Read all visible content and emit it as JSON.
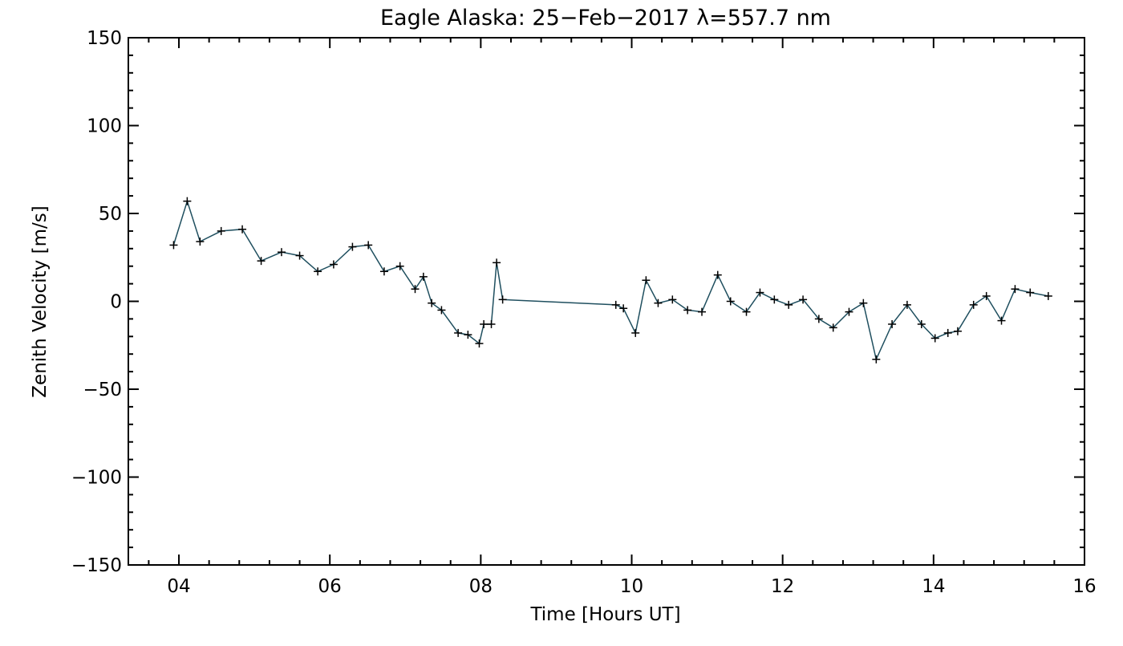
{
  "chart_data": {
    "type": "line",
    "title": "Eagle Alaska: 25−Feb−2017 λ=557.7 nm",
    "xlabel": "Time [Hours UT]",
    "ylabel": "Zenith Velocity [m/s]",
    "xlim": [
      3.33,
      16
    ],
    "ylim": [
      -150,
      150
    ],
    "xticks": [
      {
        "value": 4,
        "label": "04"
      },
      {
        "value": 6,
        "label": "06"
      },
      {
        "value": 8,
        "label": "08"
      },
      {
        "value": 10,
        "label": "10"
      },
      {
        "value": 12,
        "label": "12"
      },
      {
        "value": 14,
        "label": "14"
      },
      {
        "value": 16,
        "label": "16"
      }
    ],
    "yticks": [
      {
        "value": 150,
        "label": "150"
      },
      {
        "value": 100,
        "label": "100"
      },
      {
        "value": 50,
        "label": "50"
      },
      {
        "value": 0,
        "label": "0"
      },
      {
        "value": -50,
        "label": "−50"
      },
      {
        "value": -100,
        "label": "−100"
      },
      {
        "value": -150,
        "label": "−150"
      }
    ],
    "grid": false,
    "line_color": "#1f4f5f",
    "marker": "+",
    "series": [
      {
        "x": [
          3.93,
          4.11,
          4.28,
          4.56,
          4.84,
          5.09,
          5.36,
          5.6,
          5.84,
          6.05,
          6.3,
          6.51,
          6.72,
          6.93,
          7.13,
          7.24,
          7.35,
          7.48,
          7.7,
          7.83,
          7.98,
          8.04,
          8.14,
          8.21,
          8.29,
          9.79,
          9.89,
          10.05,
          10.19,
          10.35,
          10.54,
          10.74,
          10.93,
          11.14,
          11.31,
          11.52,
          11.7,
          11.89,
          12.08,
          12.27,
          12.48,
          12.67,
          12.88,
          13.07,
          13.24,
          13.45,
          13.65,
          13.84,
          14.02,
          14.19,
          14.32,
          14.53,
          14.7,
          14.9,
          15.08,
          15.28,
          15.52
        ],
        "y": [
          32,
          57,
          34,
          40,
          41,
          23,
          28,
          26,
          17,
          21,
          31,
          32,
          17,
          20,
          7,
          14,
          -1,
          -5,
          -18,
          -19,
          -24,
          -13,
          -13,
          22,
          1,
          -2,
          -4,
          -18,
          12,
          -1,
          1,
          -5,
          -6,
          15,
          0,
          -6,
          5,
          1,
          -2,
          1,
          -10,
          -15,
          -6,
          -1,
          -33,
          -13,
          -2,
          -13,
          -21,
          -18,
          -17,
          -2,
          3,
          -11,
          7,
          5,
          3
        ]
      }
    ]
  }
}
